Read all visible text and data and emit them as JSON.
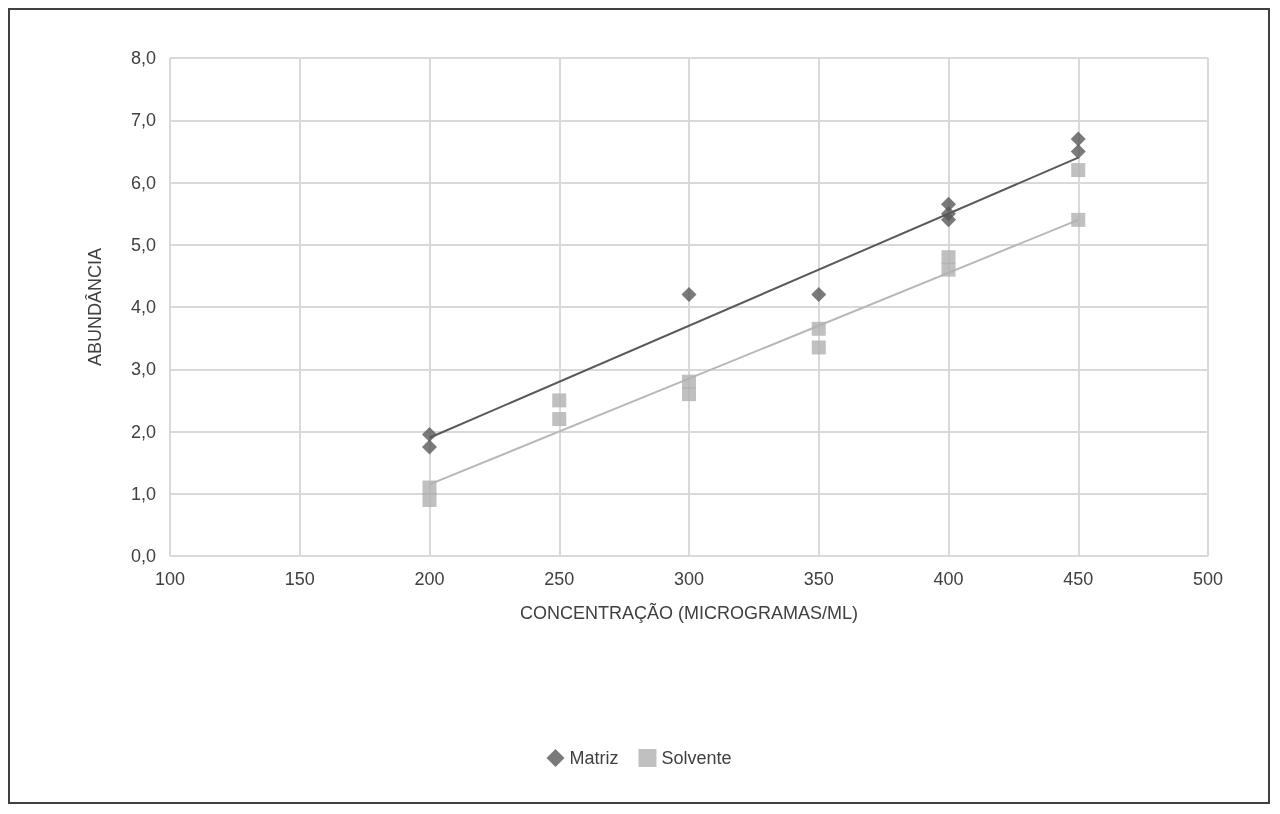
{
  "chart_data": {
    "type": "scatter",
    "xlabel": "CONCENTRAÇÃO (MICROGRAMAS/ML)",
    "ylabel": "ABUNDÂNCIA",
    "xlim": [
      100,
      500
    ],
    "xticks": [
      100,
      150,
      200,
      250,
      300,
      350,
      400,
      450,
      500
    ],
    "ylim": [
      0,
      8
    ],
    "yticks": [
      {
        "value": 0,
        "label": "0,0"
      },
      {
        "value": 1,
        "label": "1,0"
      },
      {
        "value": 2,
        "label": "2,0"
      },
      {
        "value": 3,
        "label": "3,0"
      },
      {
        "value": 4,
        "label": "4,0"
      },
      {
        "value": 5,
        "label": "5,0"
      },
      {
        "value": 6,
        "label": "6,0"
      },
      {
        "value": 7,
        "label": "7,0"
      },
      {
        "value": 8,
        "label": "8,0"
      }
    ],
    "grid": true,
    "legend": "bottom",
    "series": [
      {
        "name": "Matriz",
        "color": "#595959",
        "marker": "diamond",
        "x": [
          200,
          200,
          300,
          350,
          400,
          400,
          400,
          450,
          450
        ],
        "values": [
          1.95,
          1.75,
          4.2,
          4.2,
          5.65,
          5.5,
          5.4,
          6.7,
          6.5
        ]
      },
      {
        "name": "Solvente",
        "color": "#b0b0b0",
        "marker": "square",
        "x": [
          200,
          200,
          250,
          250,
          300,
          300,
          350,
          350,
          400,
          400,
          450,
          450
        ],
        "values": [
          1.1,
          0.9,
          2.5,
          2.2,
          2.8,
          2.6,
          3.65,
          3.35,
          4.8,
          4.6,
          6.2,
          5.4
        ]
      },
      {
        "type": "line",
        "color": "#595959",
        "marker": "none",
        "x": [
          200,
          450
        ],
        "values": [
          1.9,
          6.4
        ]
      },
      {
        "type": "line",
        "color": "#b8b8b8",
        "marker": "none",
        "x": [
          200,
          450
        ],
        "values": [
          1.15,
          5.4
        ]
      }
    ]
  }
}
